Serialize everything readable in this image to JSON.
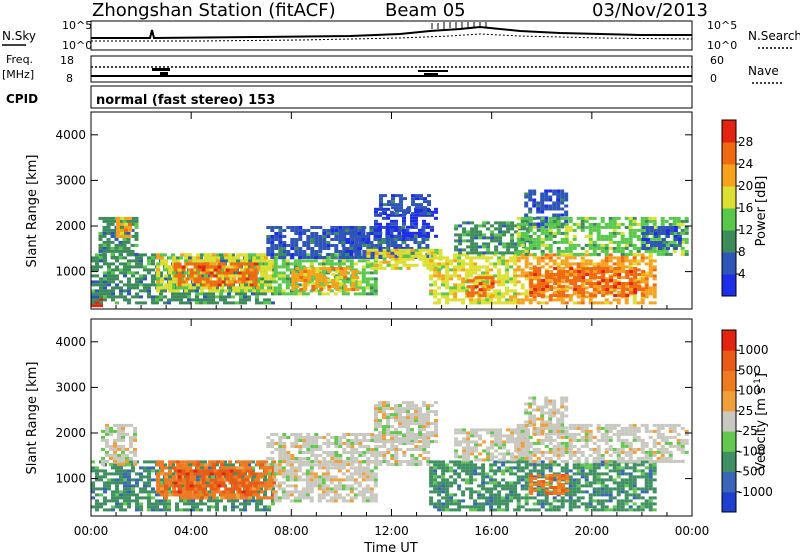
{
  "header": {
    "title": "Zhongshan Station (fitACF)",
    "beam": "Beam 05",
    "date": "03/Nov/2013"
  },
  "params": {
    "nsky_label": "N.Sky",
    "nsearch_label": "N.Search",
    "freq_label": "Freq.",
    "freq_unit": "[MHz]",
    "nave_label": "Nave",
    "cpid_label": "CPID",
    "cpid_text": "normal (fast stereo) 153",
    "noise_ticks": [
      "10^5",
      "10^0"
    ],
    "freq_ticks": [
      "18",
      "8"
    ],
    "nave_ticks": [
      "60",
      "0"
    ]
  },
  "colors": {
    "power": [
      "#1e2ee8",
      "#2e55b8",
      "#3d8a5a",
      "#58c84a",
      "#dde030",
      "#f6a21c",
      "#ef6a12",
      "#e22410"
    ],
    "velocity": [
      "#1e3fd0",
      "#3b66b8",
      "#3f8f62",
      "#62c850",
      "#c8c8c0",
      "#f0a03a",
      "#f07a20",
      "#e85a15",
      "#e22410"
    ]
  },
  "chart_data": [
    {
      "type": "heatmap",
      "name": "power",
      "xlabel": "",
      "ylabel": "Slant Range [km]",
      "xlim": [
        0,
        24
      ],
      "ylim": [
        180,
        4500
      ],
      "yticks": [
        1000,
        2000,
        3000,
        4000
      ],
      "colorbar": {
        "label": "Power [dB]",
        "ticks": [
          "4",
          "8",
          "12",
          "16",
          "20",
          "24",
          "28"
        ],
        "range": [
          0,
          32
        ]
      },
      "regions": [
        {
          "t": [
            0.0,
            0.4
          ],
          "r": [
            250,
            420
          ],
          "level": 7
        },
        {
          "t": [
            0.0,
            7.3
          ],
          "r": [
            300,
            1400
          ],
          "level": 2
        },
        {
          "t": [
            0.3,
            1.8
          ],
          "r": [
            1300,
            2200
          ],
          "level": 2
        },
        {
          "t": [
            1.0,
            1.6
          ],
          "r": [
            1800,
            2200
          ],
          "level": 5
        },
        {
          "t": [
            2.6,
            7.3
          ],
          "r": [
            600,
            1400
          ],
          "level": 4
        },
        {
          "t": [
            3.3,
            6.6
          ],
          "r": [
            700,
            1200
          ],
          "level": 6
        },
        {
          "t": [
            7.3,
            11.3
          ],
          "r": [
            500,
            1400
          ],
          "level": 3
        },
        {
          "t": [
            8.0,
            10.6
          ],
          "r": [
            600,
            1100
          ],
          "level": 5
        },
        {
          "t": [
            7.0,
            12.5
          ],
          "r": [
            1300,
            2000
          ],
          "level": 1
        },
        {
          "t": [
            10.0,
            13.5
          ],
          "r": [
            1300,
            2000
          ],
          "level": 1
        },
        {
          "t": [
            11.3,
            13.8
          ],
          "r": [
            1800,
            2400
          ],
          "level": 0
        },
        {
          "t": [
            11.5,
            13.5
          ],
          "r": [
            2300,
            2700
          ],
          "level": 1
        },
        {
          "t": [
            11.0,
            14.0
          ],
          "r": [
            1100,
            1500
          ],
          "level": 4
        },
        {
          "t": [
            13.5,
            17.0
          ],
          "r": [
            300,
            1400
          ],
          "level": 4
        },
        {
          "t": [
            15.0,
            16.0
          ],
          "r": [
            500,
            900
          ],
          "level": 6
        },
        {
          "t": [
            14.5,
            17.5
          ],
          "r": [
            1400,
            2100
          ],
          "level": 2
        },
        {
          "t": [
            17.0,
            22.5
          ],
          "r": [
            300,
            1400
          ],
          "level": 5
        },
        {
          "t": [
            17.5,
            22.0
          ],
          "r": [
            500,
            1100
          ],
          "level": 6
        },
        {
          "t": [
            17.3,
            19.0
          ],
          "r": [
            2000,
            2800
          ],
          "level": 1
        },
        {
          "t": [
            17.0,
            23.8
          ],
          "r": [
            1400,
            2200
          ],
          "level": 3
        },
        {
          "t": [
            22.0,
            23.5
          ],
          "r": [
            1500,
            2000
          ],
          "level": 1
        }
      ]
    },
    {
      "type": "heatmap",
      "name": "velocity",
      "xlabel": "Time UT",
      "ylabel": "Slant Range [km]",
      "xlim": [
        0,
        24
      ],
      "ylim": [
        180,
        4500
      ],
      "xticks": [
        "00:00",
        "04:00",
        "08:00",
        "12:00",
        "16:00",
        "20:00",
        "00:00"
      ],
      "yticks": [
        1000,
        2000,
        3000,
        4000
      ],
      "colorbar": {
        "label": "Velocity [m s^-1]",
        "ticks": [
          "1000",
          "500",
          "100",
          "25",
          "-25",
          "-100",
          "-500",
          "-1000"
        ]
      },
      "regions": [
        {
          "t": [
            0.0,
            7.3
          ],
          "r": [
            300,
            1400
          ],
          "level": 2
        },
        {
          "t": [
            0.4,
            1.8
          ],
          "r": [
            1300,
            2200
          ],
          "level": 4
        },
        {
          "t": [
            2.6,
            7.3
          ],
          "r": [
            600,
            1400
          ],
          "level": 6
        },
        {
          "t": [
            3.3,
            6.6
          ],
          "r": [
            700,
            1200
          ],
          "level": 7
        },
        {
          "t": [
            7.3,
            11.3
          ],
          "r": [
            500,
            1400
          ],
          "level": 4
        },
        {
          "t": [
            7.0,
            13.5
          ],
          "r": [
            1300,
            2000
          ],
          "level": 4
        },
        {
          "t": [
            11.3,
            13.8
          ],
          "r": [
            1800,
            2700
          ],
          "level": 4
        },
        {
          "t": [
            13.5,
            17.0
          ],
          "r": [
            300,
            1400
          ],
          "level": 2
        },
        {
          "t": [
            14.5,
            17.5
          ],
          "r": [
            1400,
            2100
          ],
          "level": 4
        },
        {
          "t": [
            17.0,
            22.5
          ],
          "r": [
            300,
            1400
          ],
          "level": 2
        },
        {
          "t": [
            17.5,
            19.0
          ],
          "r": [
            700,
            1100
          ],
          "level": 6
        },
        {
          "t": [
            17.3,
            19.0
          ],
          "r": [
            2000,
            2800
          ],
          "level": 4
        },
        {
          "t": [
            17.0,
            23.8
          ],
          "r": [
            1400,
            2200
          ],
          "level": 4
        }
      ]
    }
  ]
}
